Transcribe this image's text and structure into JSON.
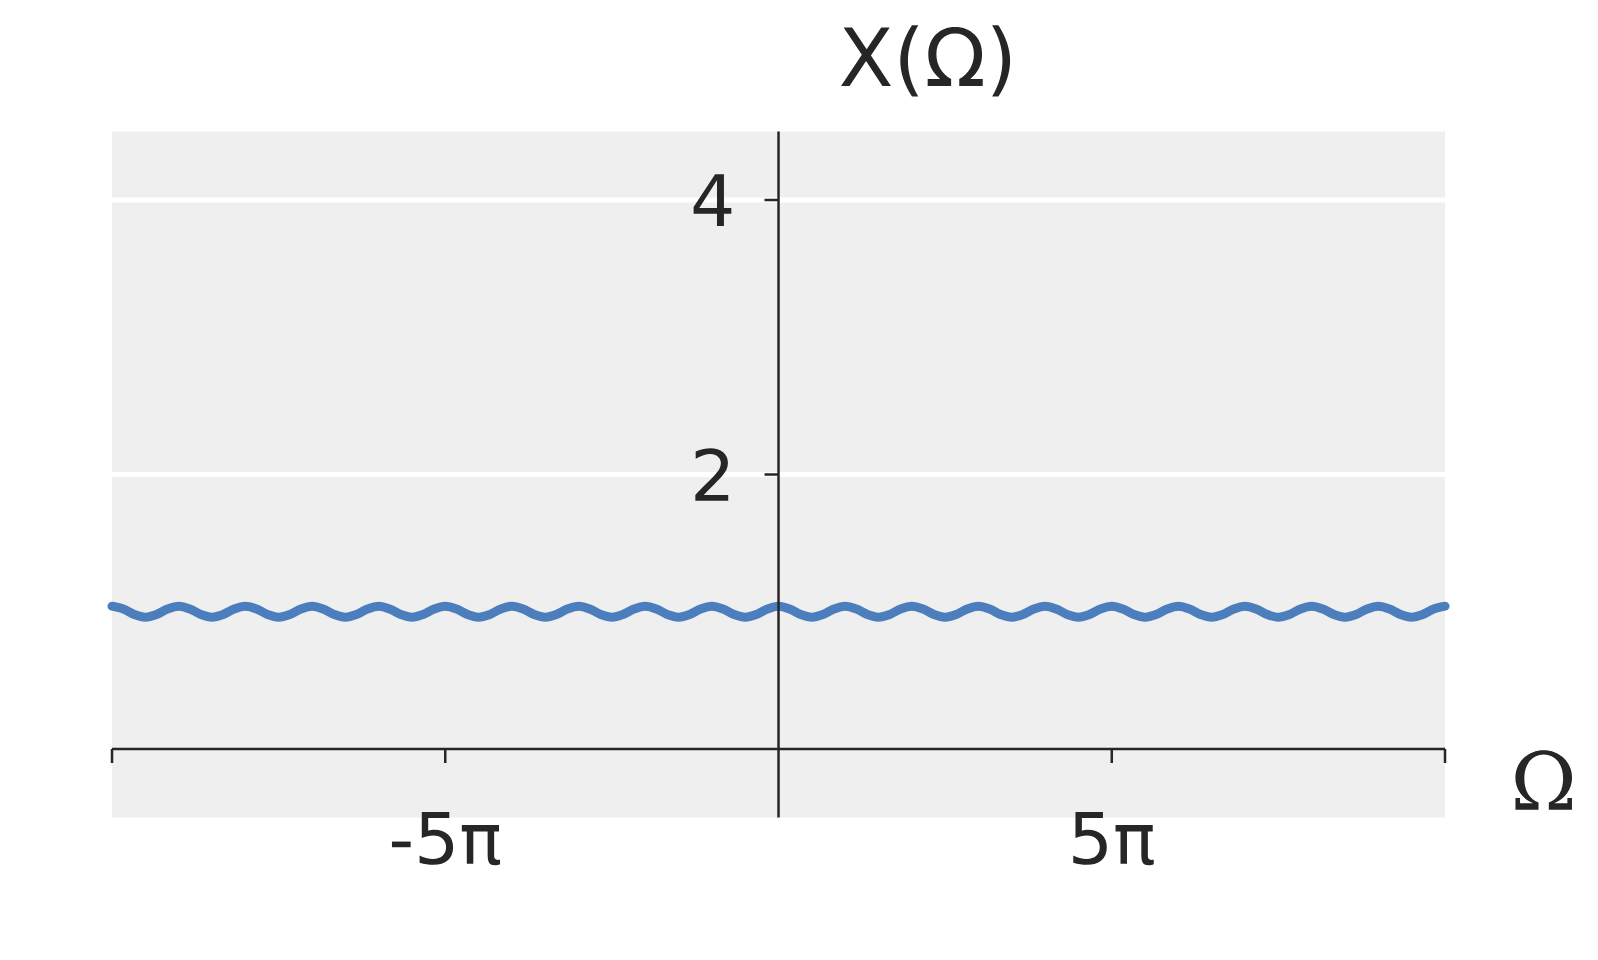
{
  "chart_data": {
    "type": "line",
    "xlabel": "Ω",
    "ylabel": "X(Ω)",
    "x": [
      -31.42,
      -30.89,
      -30.37,
      -29.85,
      -29.32,
      -28.8,
      -28.27,
      -27.75,
      -27.23,
      -26.7,
      -26.18,
      -25.66,
      -25.13,
      -24.61,
      -24.09,
      -23.56,
      -23.04,
      -22.51,
      -21.99,
      -21.47,
      -20.94,
      -20.42,
      -19.9,
      -19.37,
      -18.85,
      -18.33,
      -17.8,
      -17.28,
      -16.76,
      -16.23,
      -15.71,
      -15.18,
      -14.66,
      -14.14,
      -13.61,
      -13.09,
      -12.57,
      -12.04,
      -11.52,
      -11.0,
      -10.47,
      -9.95,
      -9.42,
      -8.9,
      -8.38,
      -7.85,
      -7.33,
      -6.81,
      -6.28,
      -5.76,
      -5.24,
      -4.71,
      -4.19,
      -3.67,
      -3.14,
      -2.62,
      -2.09,
      -1.57,
      -1.05,
      -0.52,
      0,
      0.52,
      1.05,
      1.57,
      2.09,
      2.62,
      3.14,
      3.67,
      4.19,
      4.71,
      5.24,
      5.76,
      6.28,
      6.81,
      7.33,
      7.85,
      8.38,
      8.9,
      9.42,
      9.95,
      10.47,
      11.0,
      11.52,
      12.04,
      12.57,
      13.09,
      13.61,
      14.14,
      14.66,
      15.18,
      15.71,
      16.23,
      16.76,
      17.28,
      17.8,
      18.33,
      18.85,
      19.37,
      19.9,
      20.42,
      20.94,
      21.47,
      21.99,
      22.51,
      23.04,
      23.56,
      24.09,
      24.61,
      25.13,
      25.66,
      26.18,
      26.7,
      27.23,
      27.75,
      28.27,
      28.8,
      29.32,
      29.85,
      30.37,
      30.89,
      31.42
    ],
    "values": [
      1.04,
      1.02,
      0.98,
      0.96,
      0.98,
      1.02,
      1.04,
      1.02,
      0.98,
      0.96,
      0.98,
      1.02,
      1.04,
      1.02,
      0.98,
      0.96,
      0.98,
      1.02,
      1.04,
      1.02,
      0.98,
      0.96,
      0.98,
      1.02,
      1.04,
      1.02,
      0.98,
      0.96,
      0.98,
      1.02,
      1.04,
      1.02,
      0.98,
      0.96,
      0.98,
      1.02,
      1.04,
      1.02,
      0.98,
      0.96,
      0.98,
      1.02,
      1.04,
      1.02,
      0.98,
      0.96,
      0.98,
      1.02,
      1.04,
      1.02,
      0.98,
      0.96,
      0.98,
      1.02,
      1.04,
      1.02,
      0.98,
      0.96,
      0.98,
      1.02,
      1.04,
      1.02,
      0.98,
      0.96,
      0.98,
      1.02,
      1.04,
      1.02,
      0.98,
      0.96,
      0.98,
      1.02,
      1.04,
      1.02,
      0.98,
      0.96,
      0.98,
      1.02,
      1.04,
      1.02,
      0.98,
      0.96,
      0.98,
      1.02,
      1.04,
      1.02,
      0.98,
      0.96,
      0.98,
      1.02,
      1.04,
      1.02,
      0.98,
      0.96,
      0.98,
      1.02,
      1.04,
      1.02,
      0.98,
      0.96,
      0.98,
      1.02,
      1.04,
      1.02,
      0.98,
      0.96,
      0.98,
      1.02,
      1.04,
      1.02,
      0.98,
      0.96,
      0.98,
      1.02,
      1.04,
      1.02,
      0.98,
      0.96,
      0.98,
      1.02,
      1.04
    ],
    "color": "#4c7ebe",
    "xlim": [
      -31.42,
      31.42
    ],
    "ylim": [
      -0.5,
      4.5
    ],
    "xticks": [
      {
        "value": -31.42,
        "label": null
      },
      {
        "value": -15.71,
        "label": "-5π"
      },
      {
        "value": 15.71,
        "label": "5π"
      },
      {
        "value": 31.42,
        "label": null
      }
    ],
    "yticks": [
      2,
      4
    ],
    "grid": "y"
  }
}
